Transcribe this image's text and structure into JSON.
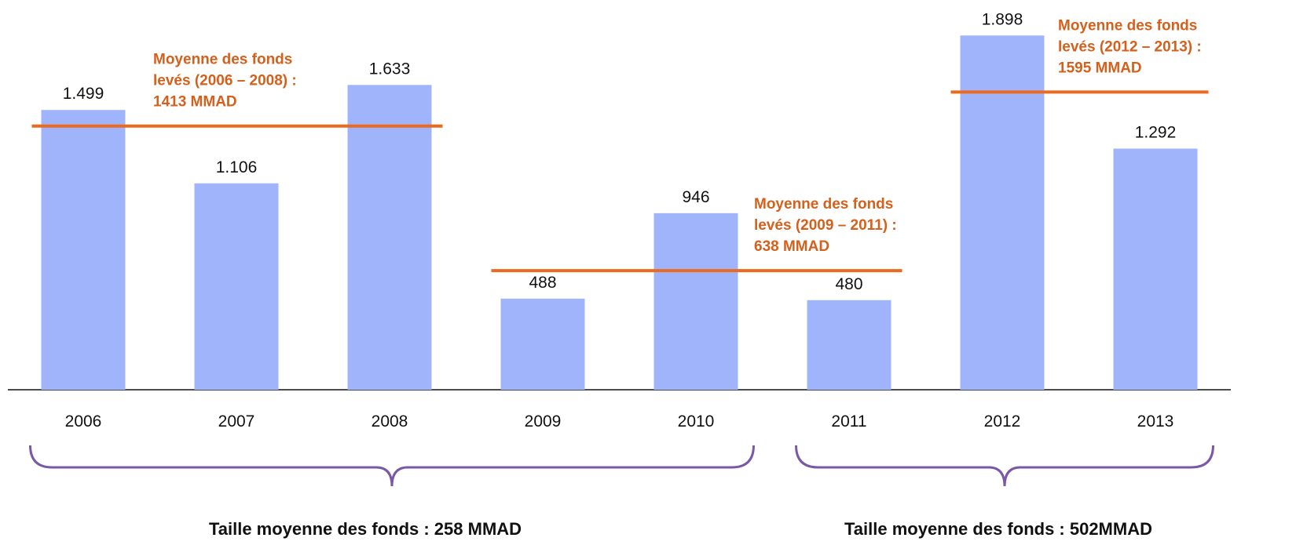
{
  "chart_data": {
    "type": "bar",
    "categories": [
      "2006",
      "2007",
      "2008",
      "2009",
      "2010",
      "2011",
      "2012",
      "2013"
    ],
    "values": [
      1499,
      1106,
      1633,
      488,
      946,
      480,
      1898,
      1292
    ],
    "value_labels": [
      "1.499",
      "1.106",
      "1.633",
      "488",
      "946",
      "480",
      "1.898",
      "1.292"
    ],
    "color": "#a0b4fb",
    "averages": [
      {
        "label": [
          "Moyenne des fonds",
          "levés (2006 – 2008) :",
          "1413 MMAD"
        ],
        "value": 1413,
        "range": [
          "2006",
          "2008"
        ],
        "color": "#ec6a1e"
      },
      {
        "label": [
          "Moyenne des fonds",
          "levés (2009 – 2011) :",
          "638 MMAD"
        ],
        "value": 638,
        "range": [
          "2009",
          "2011"
        ],
        "color": "#ec6a1e"
      },
      {
        "label": [
          "Moyenne des fonds",
          "levés (2012 – 2013) :",
          "1595 MMAD"
        ],
        "value": 1595,
        "range": [
          "2012",
          "2013"
        ],
        "color": "#ec6a1e"
      }
    ],
    "groups": [
      {
        "label": "Taille moyenne des fonds :  258 MMAD",
        "range": [
          "2006",
          "2010"
        ]
      },
      {
        "label": "Taille moyenne des fonds :  502MMAD",
        "range": [
          "2011",
          "2013"
        ]
      }
    ]
  }
}
